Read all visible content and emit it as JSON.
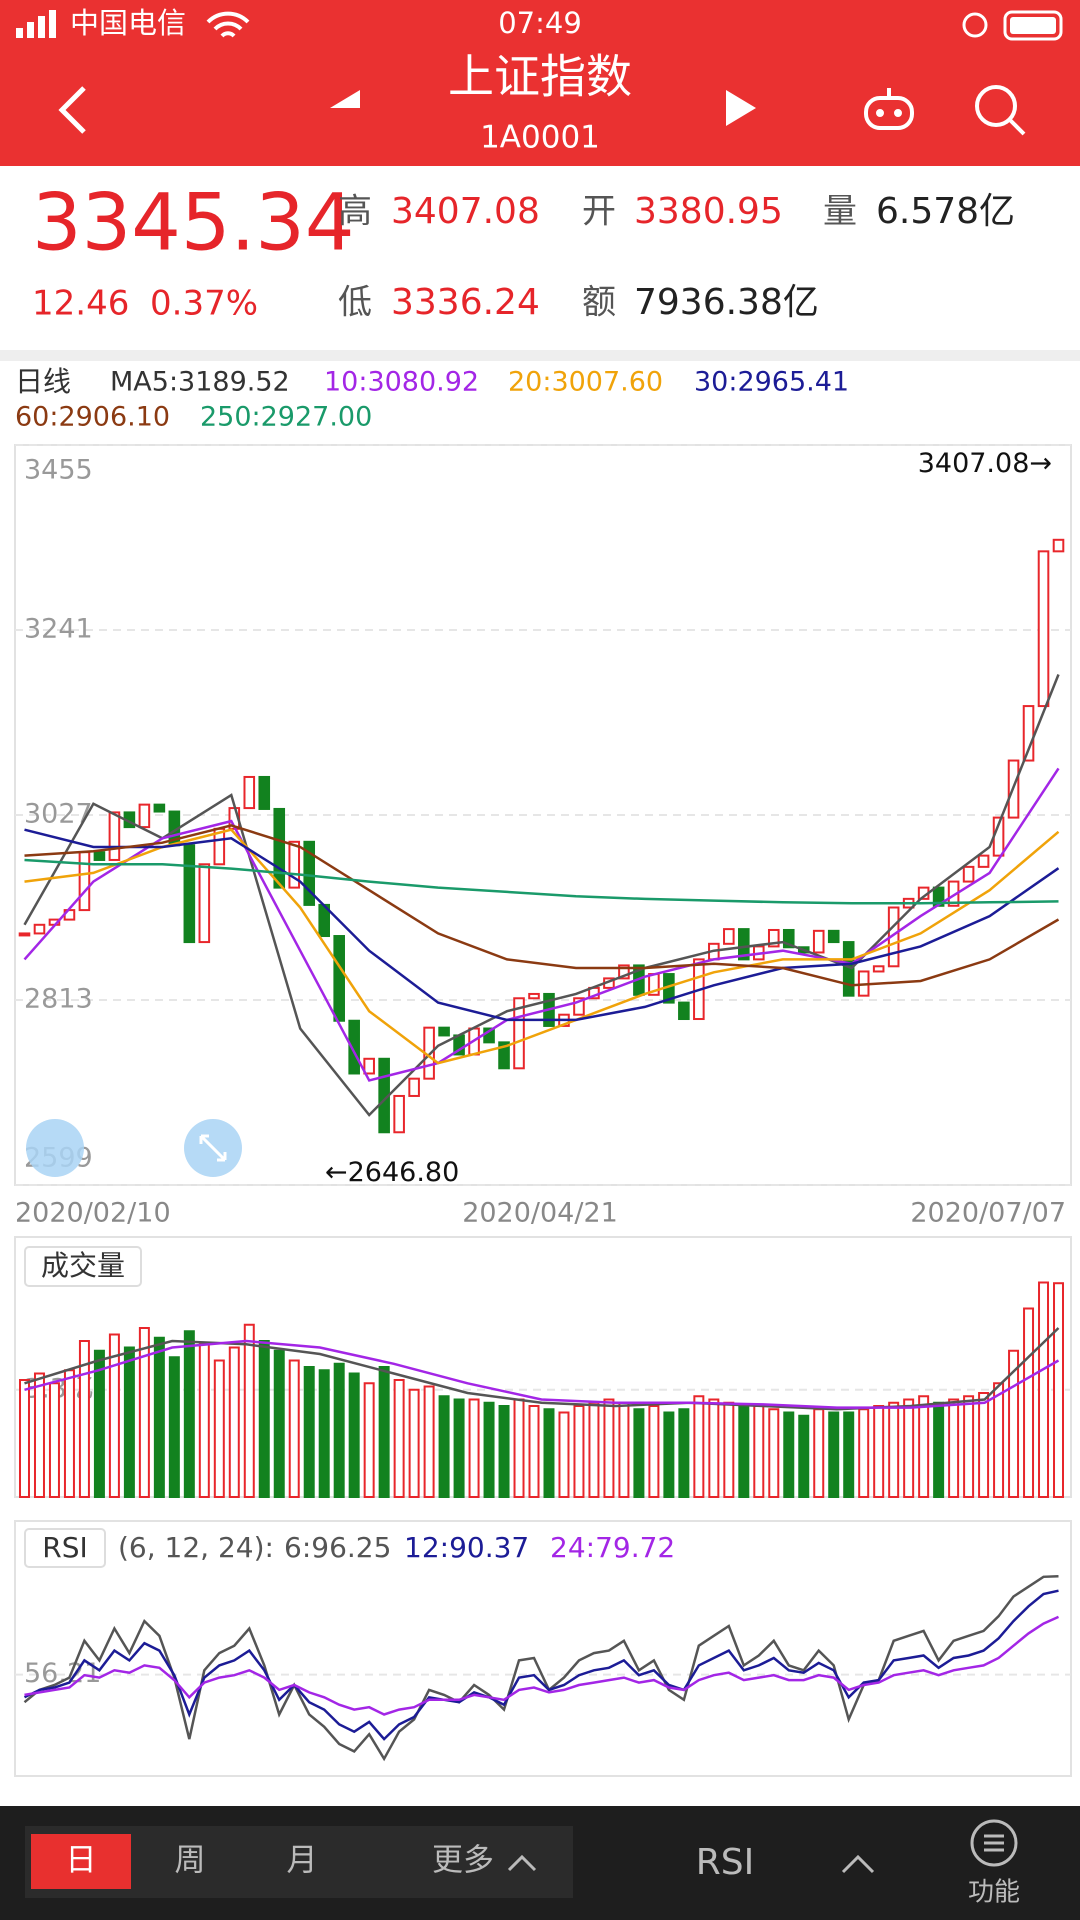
{
  "status_bar": {
    "carrier": "中国电信",
    "time": "07:49"
  },
  "header": {
    "title": "上证指数",
    "code": "1A0001"
  },
  "quote": {
    "price": "3345.34",
    "change": "12.46",
    "change_pct": "0.37%",
    "high_label": "高",
    "high": "3407.08",
    "open_label": "开",
    "open": "3380.95",
    "volume_label": "量",
    "volume": "6.578亿",
    "low_label": "低",
    "low": "3336.24",
    "amount_label": "额",
    "amount": "7936.38亿"
  },
  "chart_data": [
    {
      "type": "candlestick",
      "period_label": "日线",
      "up_color": "#e8262b",
      "down_color": "#12821f",
      "x_labels": [
        "2020/02/10",
        "2020/04/21",
        "2020/07/07"
      ],
      "closes": [
        2890,
        2900,
        2906,
        2917,
        2984,
        2975,
        3030,
        3013,
        3039,
        3031,
        2992,
        2880,
        2970,
        3011,
        3035,
        3071,
        3034,
        2943,
        2996,
        2923,
        2887,
        2789,
        2728,
        2745,
        2660,
        2702,
        2722,
        2781,
        2772,
        2750,
        2780,
        2764,
        2734,
        2815,
        2820,
        2783,
        2796,
        2815,
        2827,
        2838,
        2853,
        2819,
        2843,
        2810,
        2791,
        2860,
        2878,
        2895,
        2860,
        2875,
        2894,
        2874,
        2868,
        2893,
        2880,
        2818,
        2846,
        2852,
        2920,
        2930,
        2943,
        2922,
        2950,
        2967,
        2980,
        3024,
        3090,
        3153,
        3332,
        3345.34
      ],
      "ylim": [
        2599,
        3455
      ],
      "yticks": [
        3455,
        3241,
        3027,
        2813,
        2599
      ],
      "series": [
        {
          "name": "MA5:3189.52",
          "color": "#555555",
          "values": [
            2900,
            3040,
            3000,
            3050,
            2780,
            2680,
            2760,
            2800,
            2820,
            2850,
            2870,
            2880,
            2850,
            2930,
            2990,
            3189.52
          ]
        },
        {
          "name": "10:3080.92",
          "color": "#a326e6",
          "values": [
            2860,
            2950,
            3000,
            3020,
            2870,
            2720,
            2740,
            2790,
            2810,
            2840,
            2860,
            2870,
            2855,
            2910,
            2960,
            3080.92
          ]
        },
        {
          "name": "20:3007.60",
          "color": "#f0a30a",
          "values": [
            2950,
            2960,
            2990,
            3010,
            2920,
            2800,
            2740,
            2760,
            2790,
            2820,
            2845,
            2860,
            2860,
            2890,
            2940,
            3007.6
          ]
        },
        {
          "name": "30:2965.41",
          "color": "#1c1c96",
          "values": [
            3010,
            2990,
            2990,
            3000,
            2950,
            2870,
            2810,
            2790,
            2790,
            2805,
            2830,
            2850,
            2855,
            2875,
            2910,
            2965.41
          ]
        },
        {
          "name": "60:2906.10",
          "color": "#8b3a12",
          "values": [
            2980,
            2985,
            2995,
            3015,
            2990,
            2940,
            2890,
            2860,
            2850,
            2850,
            2855,
            2850,
            2830,
            2835,
            2860,
            2906.1
          ]
        },
        {
          "name": "250:2927.00",
          "color": "#1a9a6a",
          "values": [
            2975,
            2970,
            2970,
            2965,
            2958,
            2950,
            2943,
            2938,
            2933,
            2930,
            2928,
            2926,
            2925,
            2925,
            2926,
            2927.0
          ]
        }
      ],
      "annotations": [
        {
          "text": "3407.08→",
          "value": 3407.08
        },
        {
          "text": "←2646.80",
          "value": 2646.8
        }
      ]
    },
    {
      "type": "bar",
      "label": "成交量",
      "values": [
        3.6,
        3.8,
        3.5,
        3.9,
        4.8,
        4.5,
        5.0,
        4.6,
        5.2,
        4.9,
        4.3,
        5.1,
        4.7,
        4.2,
        4.6,
        5.3,
        4.8,
        4.5,
        4.2,
        4.0,
        3.9,
        4.1,
        3.8,
        3.5,
        4.0,
        3.6,
        3.3,
        3.4,
        3.1,
        3.0,
        3.0,
        2.9,
        2.8,
        3.0,
        2.8,
        2.7,
        2.6,
        2.8,
        2.9,
        3.0,
        2.9,
        2.7,
        2.8,
        2.6,
        2.7,
        3.1,
        3.0,
        2.9,
        2.8,
        2.8,
        2.7,
        2.6,
        2.5,
        2.7,
        2.6,
        2.6,
        2.7,
        2.8,
        2.9,
        3.0,
        3.1,
        2.9,
        3.0,
        3.1,
        3.2,
        3.5,
        4.5,
        5.8,
        6.6,
        6.578
      ],
      "ylim": [
        0,
        8
      ],
      "yticks": [
        {
          "value": 3.3,
          "label": "3.3亿"
        }
      ],
      "series": [
        {
          "color": "#555555",
          "values": [
            3.5,
            4.2,
            4.8,
            4.7,
            4.4,
            3.8,
            3.2,
            2.9,
            2.8,
            2.9,
            2.8,
            2.7,
            2.8,
            3.0,
            5.2
          ]
        },
        {
          "color": "#a326e6",
          "values": [
            3.3,
            3.9,
            4.6,
            4.8,
            4.6,
            4.1,
            3.5,
            3.0,
            2.9,
            2.9,
            2.85,
            2.75,
            2.75,
            2.9,
            4.2
          ]
        }
      ]
    },
    {
      "type": "line",
      "label": "RSI",
      "params": "(6, 12, 24):",
      "ylim": [
        15,
        100
      ],
      "yticks": [
        56.21
      ],
      "series": [
        {
          "name": "6:96.25",
          "color": "#555555",
          "values": [
            45,
            50,
            52,
            55,
            70,
            62,
            75,
            65,
            78,
            72,
            55,
            30,
            58,
            65,
            68,
            75,
            60,
            40,
            52,
            40,
            35,
            28,
            25,
            32,
            22,
            33,
            38,
            50,
            48,
            45,
            52,
            48,
            42,
            62,
            63,
            50,
            55,
            62,
            65,
            66,
            70,
            58,
            62,
            50,
            46,
            68,
            72,
            76,
            60,
            64,
            70,
            60,
            58,
            66,
            60,
            38,
            52,
            54,
            70,
            72,
            74,
            62,
            70,
            72,
            74,
            80,
            88,
            92,
            96,
            96.25
          ]
        },
        {
          "name": "12:90.37",
          "color": "#1c1c96",
          "values": [
            47,
            50,
            51,
            53,
            62,
            58,
            66,
            62,
            69,
            66,
            56,
            40,
            55,
            60,
            62,
            66,
            58,
            46,
            52,
            45,
            42,
            36,
            33,
            37,
            30,
            36,
            39,
            47,
            46,
            45,
            49,
            47,
            44,
            55,
            56,
            50,
            52,
            56,
            58,
            59,
            62,
            56,
            58,
            52,
            50,
            60,
            63,
            66,
            58,
            60,
            63,
            58,
            57,
            61,
            58,
            47,
            53,
            54,
            62,
            63,
            64,
            59,
            63,
            64,
            66,
            71,
            78,
            84,
            89,
            90.37
          ]
        },
        {
          "name": "24:79.72",
          "color": "#a326e6",
          "values": [
            48,
            49,
            50,
            51,
            56,
            55,
            58,
            57,
            60,
            59,
            54,
            47,
            53,
            55,
            56,
            58,
            55,
            50,
            52,
            49,
            47,
            44,
            42,
            43,
            40,
            42,
            43,
            46,
            46,
            46,
            48,
            47,
            46,
            50,
            51,
            49,
            50,
            52,
            53,
            54,
            55,
            53,
            54,
            51,
            50,
            54,
            56,
            57,
            54,
            55,
            56,
            54,
            54,
            56,
            55,
            50,
            52,
            53,
            56,
            57,
            58,
            56,
            58,
            59,
            60,
            63,
            68,
            73,
            77,
            79.72
          ]
        }
      ]
    }
  ],
  "toolbar": {
    "tabs": [
      "日",
      "周",
      "月",
      "更多"
    ],
    "indicator": "RSI",
    "function": "功能"
  }
}
